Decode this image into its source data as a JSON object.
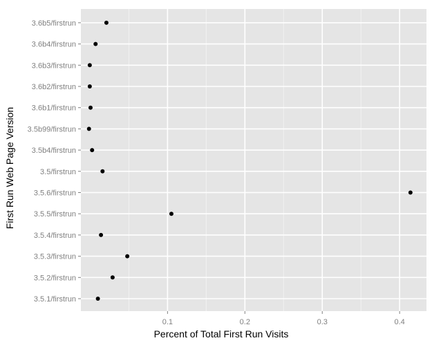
{
  "chart_data": {
    "type": "scatter",
    "xlabel": "Percent of Total First Run Visits",
    "ylabel": "First Run Web Page Version",
    "categories": [
      "3.5.1/firstrun",
      "3.5.2/firstrun",
      "3.5.3/firstrun",
      "3.5.4/firstrun",
      "3.5.5/firstrun",
      "3.5.6/firstrun",
      "3.5/firstrun",
      "3.5b4/firstrun",
      "3.5b99/firstrun",
      "3.6b1/firstrun",
      "3.6b2/firstrun",
      "3.6b3/firstrun",
      "3.6b4/firstrun",
      "3.6b5/firstrun"
    ],
    "values": [
      0.01,
      0.029,
      0.048,
      0.014,
      0.105,
      0.414,
      0.016,
      0.0025,
      -0.0015,
      0.0005,
      -0.0005,
      -0.0005,
      0.007,
      0.021
    ],
    "xticks": [
      0.1,
      0.2,
      0.3,
      0.4
    ],
    "xtick_labels": [
      "0.1",
      "0.2",
      "0.3",
      "0.4"
    ],
    "xlim": [
      -0.012,
      0.4347
    ],
    "grid": true,
    "colors": {
      "panel": "#e5e5e5",
      "grid_major": "#ffffff",
      "grid_minor": "#f2f2f2",
      "point": "#000000",
      "tick_label": "#7f7f7f"
    }
  }
}
